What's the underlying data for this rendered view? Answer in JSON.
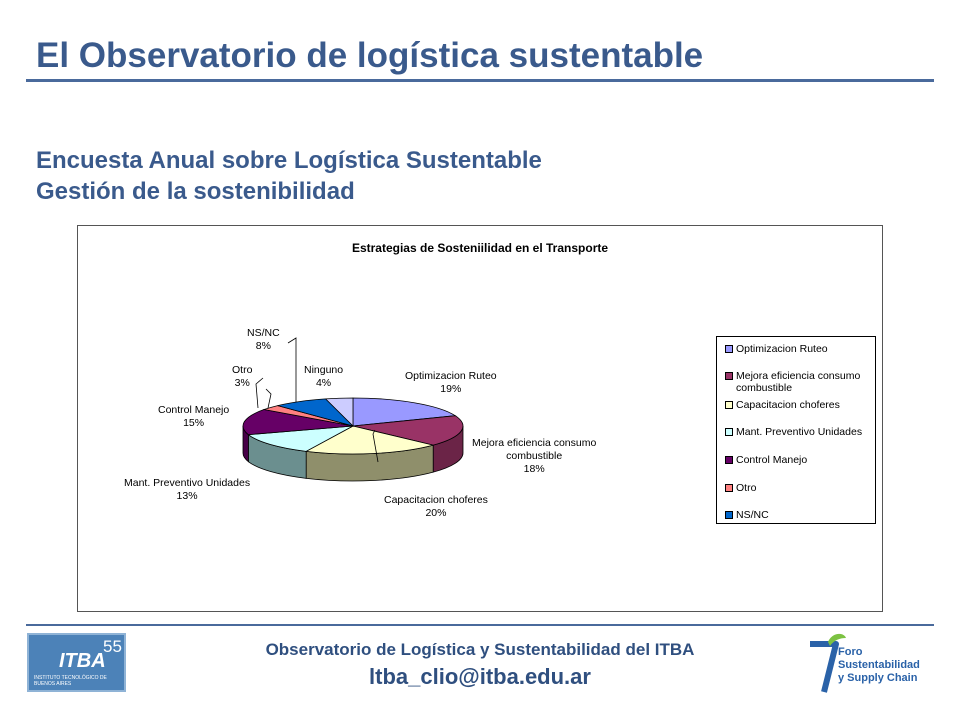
{
  "slide": {
    "title": "El Observatorio de logística sustentable",
    "subtitle_line1": "Encuesta Anual sobre Logística Sustentable",
    "subtitle_line2": "Gestión de la sostenibilidad"
  },
  "footer": {
    "org": "Observatorio de Logística y Sustentabilidad del ITBA",
    "email": "ltba_clio@itba.edu.ar",
    "itba_logo_text": "ITBA",
    "itba_logo_number": "55",
    "itba_logo_subtext": "INSTITUTO TECNOLÓGICO DE BUENOS AIRES",
    "foro_logo_line1": "Foro",
    "foro_logo_line2": "Sustentabilidad",
    "foro_logo_line3": "y Supply Chain"
  },
  "chart_data": {
    "type": "pie",
    "title": "Estrategias de Sosteniilidad en el Transporte",
    "legend_position": "right",
    "slices": [
      {
        "label": "Optimizacion Ruteo",
        "legend": "Optimizacion Ruteo",
        "value": 19,
        "display": "19%",
        "color": "#9999ff",
        "side": "#6b6bb3"
      },
      {
        "label": "Mejora eficiencia consumo combustible",
        "legend": "Mejora eficiencia consumo combustible",
        "value": 18,
        "display": "18%",
        "color": "#993366",
        "side": "#6b2447"
      },
      {
        "label": "Capacitacion choferes",
        "legend": "Capacitacion choferes",
        "value": 20,
        "display": "20%",
        "color": "#ffffcc",
        "side": "#8f8f6b"
      },
      {
        "label": "Mant. Preventivo Unidades",
        "legend": "Mant. Preventivo Unidades",
        "value": 13,
        "display": "13%",
        "color": "#ccffff",
        "side": "#6b8f8f"
      },
      {
        "label": "Control Manejo",
        "legend": "Control Manejo",
        "value": 15,
        "display": "15%",
        "color": "#660066",
        "side": "#470047"
      },
      {
        "label": "Otro",
        "legend": "Otro",
        "value": 3,
        "display": "3%",
        "color": "#ff8080",
        "side": "#b35a5a"
      },
      {
        "label": "NS/NC",
        "legend": "NS/NC",
        "value": 8,
        "display": "8%",
        "color": "#0066cc",
        "side": "#00478f"
      },
      {
        "label": "Ninguno",
        "legend": null,
        "value": 4,
        "display": "4%",
        "color": "#ccccff",
        "side": "#8f8fb3"
      }
    ]
  }
}
